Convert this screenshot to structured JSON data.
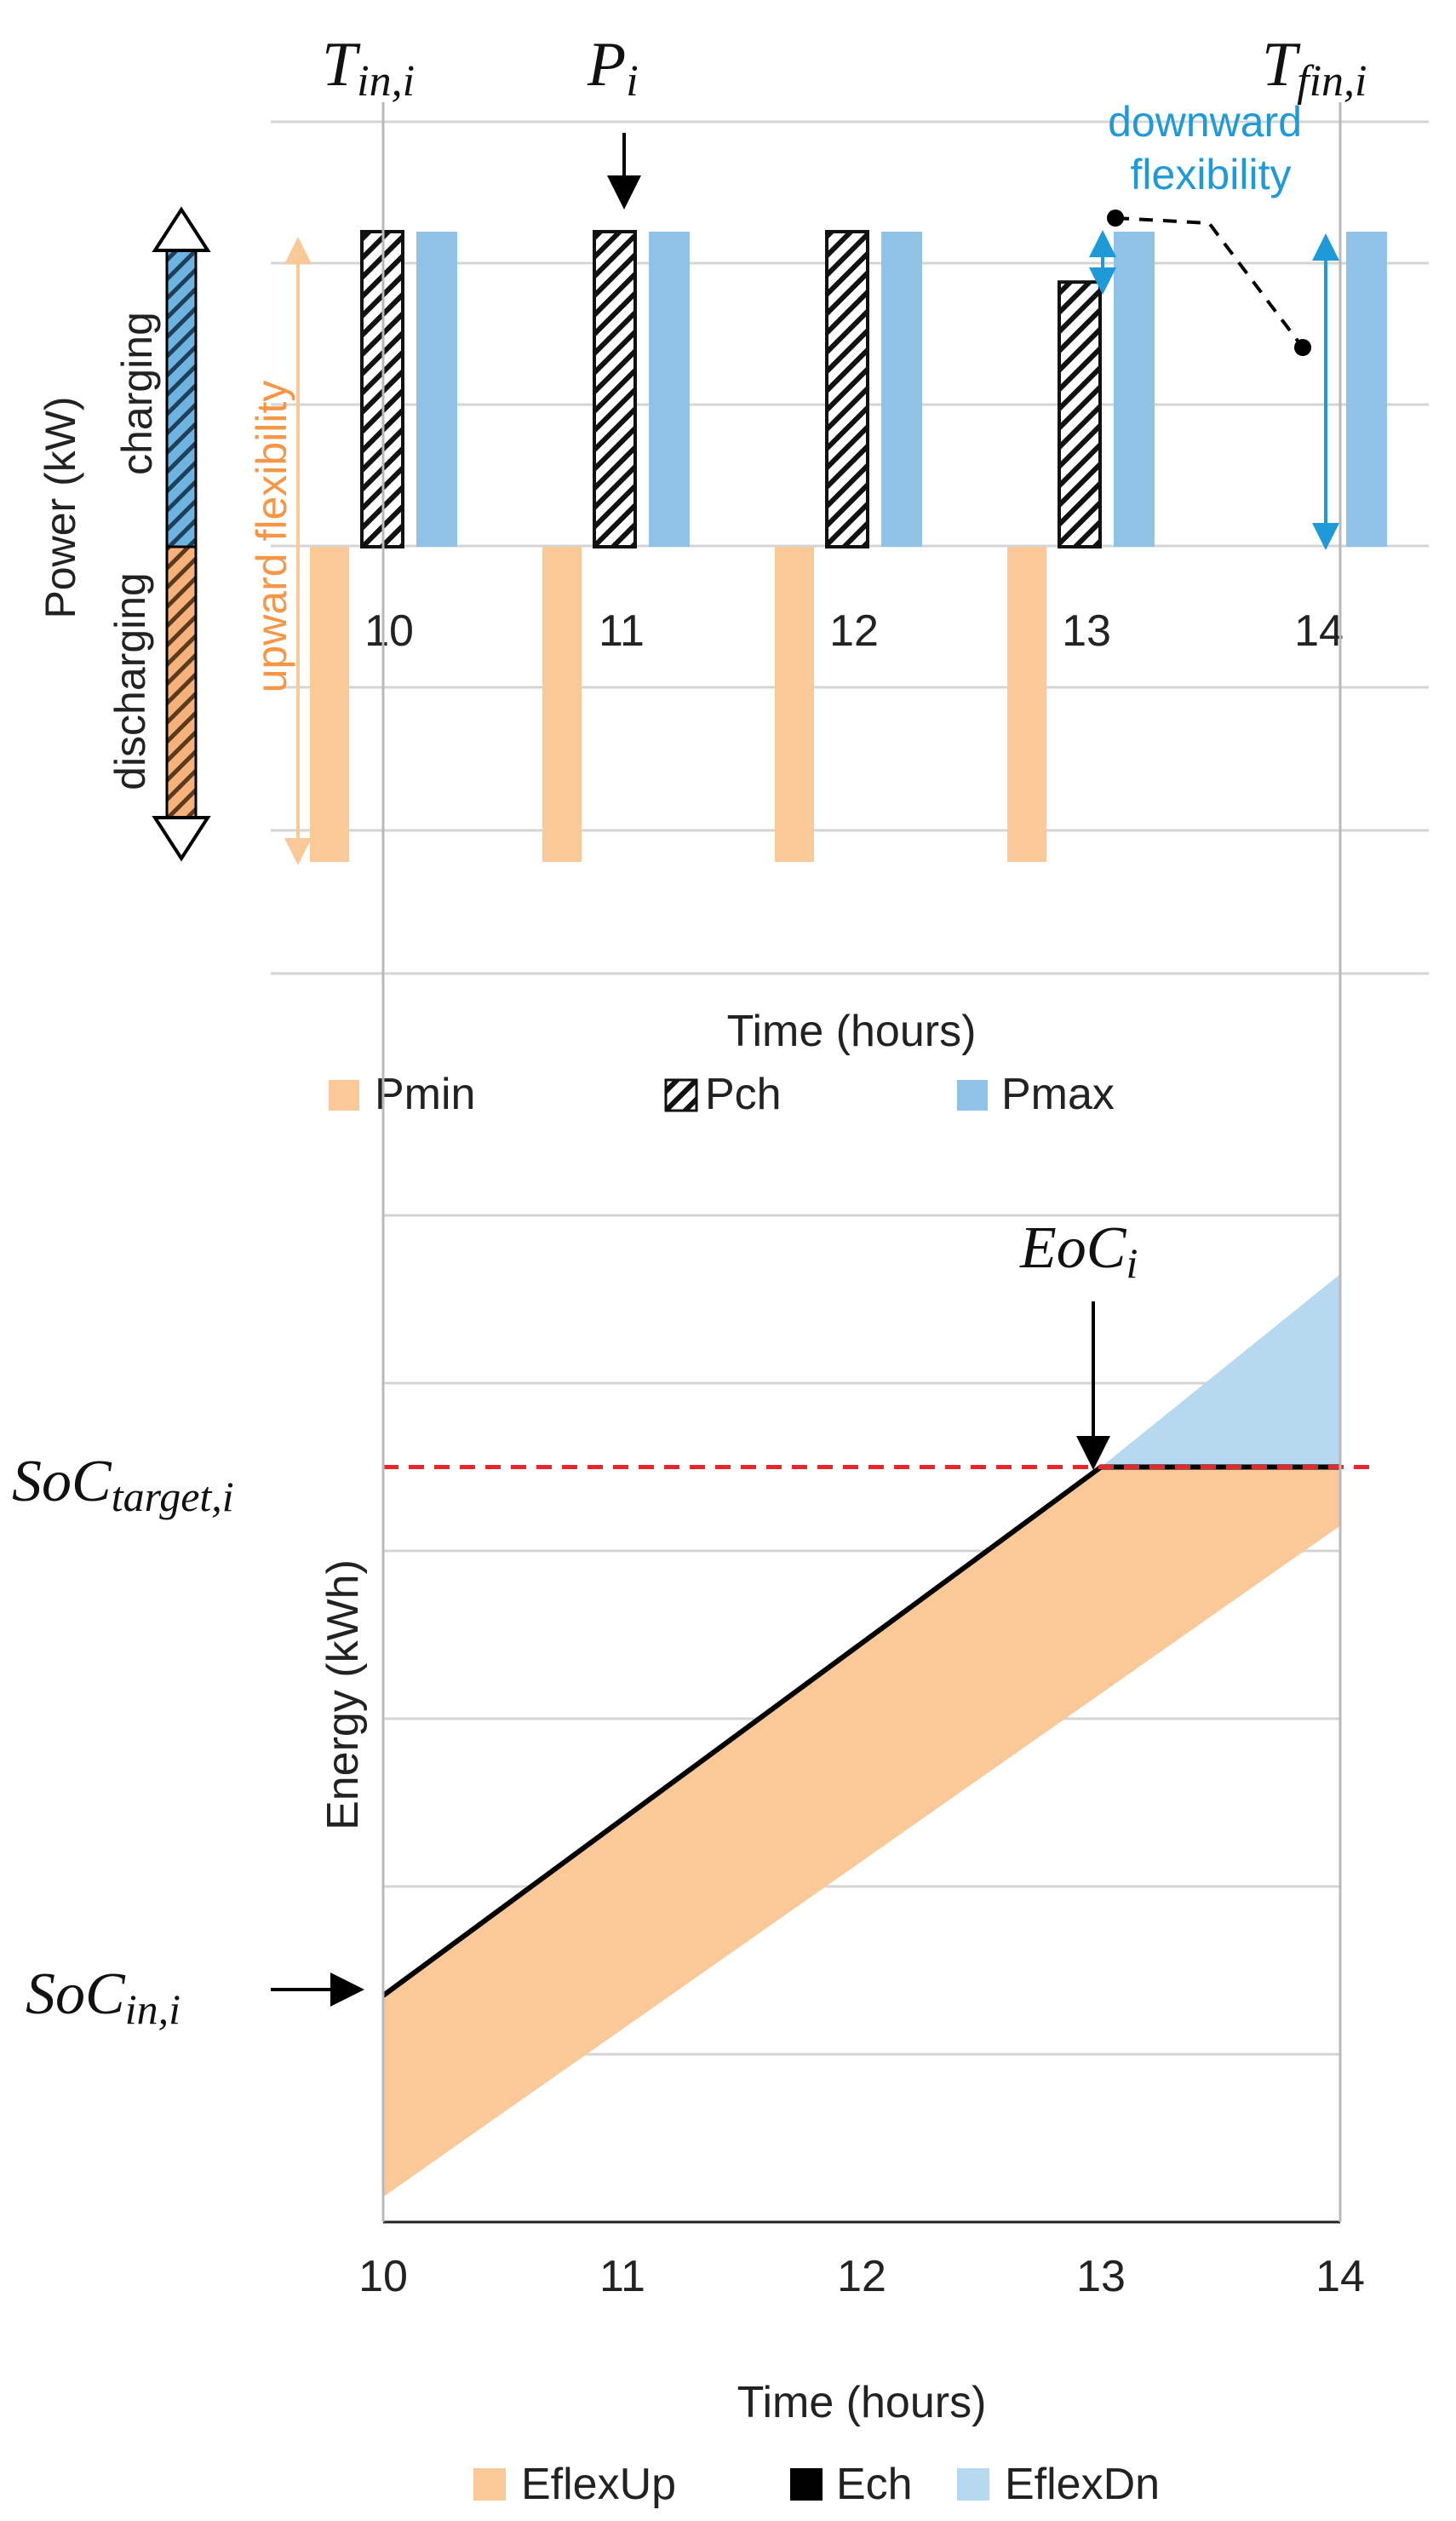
{
  "colors": {
    "pmin": "#fbc897",
    "pmax": "#8ec2e6",
    "pch_stroke": "#111111",
    "eflexup": "#fbc897",
    "eflexdn": "#b7d9ef",
    "ech": "#000000",
    "target_line": "#e8272b",
    "orange_text": "#f79646",
    "blue_text": "#1f9ad8",
    "grid": "#d4d4d4"
  },
  "top_annotations": {
    "t_in": {
      "base": "T",
      "sub": "in,i"
    },
    "p_i": {
      "base": "P",
      "sub": "i"
    },
    "t_fin": {
      "base": "T",
      "sub": "fin,i"
    },
    "downward_line1": "downward",
    "downward_line2": "flexibility",
    "upward": "upward flexibility",
    "ylabel": "Power (kW)",
    "charging": "charging",
    "discharging": "discharging"
  },
  "bottom_annotations": {
    "eoc": {
      "base": "EoC",
      "sub": "i"
    },
    "soc_target": {
      "base": "SoC",
      "sub": "target,i"
    },
    "soc_in": {
      "base": "SoC",
      "sub": "in,i"
    }
  },
  "chart_data": [
    {
      "type": "bar",
      "title": "",
      "xlabel": "Time (hours)",
      "ylabel": "Power (kW)",
      "categories": [
        "10",
        "11",
        "12",
        "13",
        "14"
      ],
      "ylim": [
        -1,
        1
      ],
      "series": [
        {
          "name": "Pmin",
          "values": [
            -1,
            -1,
            -1,
            -1,
            null
          ]
        },
        {
          "name": "Pch",
          "values": [
            1,
            1,
            1,
            0.84,
            null
          ]
        },
        {
          "name": "Pmax",
          "values": [
            1,
            1,
            1,
            1,
            1
          ]
        }
      ],
      "legend": [
        "Pmin",
        "Pch",
        "Pmax"
      ],
      "legend_position": "bottom"
    },
    {
      "type": "area",
      "title": "",
      "xlabel": "Time (hours)",
      "ylabel": "Energy (kWh)",
      "x": [
        10,
        11,
        12,
        13,
        14
      ],
      "xlim": [
        10,
        14
      ],
      "ylim": [
        0,
        6
      ],
      "series": [
        {
          "name": "EflexUp",
          "lower": [
            0.15,
            1.15,
            2.15,
            3.15,
            4.15
          ],
          "upper": [
            1.35,
            2.4,
            3.45,
            4.5,
            4.5
          ]
        },
        {
          "name": "Ech",
          "values": [
            1.35,
            2.4,
            3.45,
            4.5,
            4.5
          ]
        },
        {
          "name": "EflexDn",
          "lower": [
            1.35,
            2.4,
            3.45,
            4.5,
            4.5
          ],
          "upper": [
            1.35,
            2.4,
            3.45,
            4.5,
            5.65
          ]
        }
      ],
      "reference_line": {
        "name": "SoC target",
        "y": 4.5
      },
      "legend": [
        "EflexUp",
        "Ech",
        "EflexDn"
      ],
      "legend_position": "bottom"
    }
  ]
}
